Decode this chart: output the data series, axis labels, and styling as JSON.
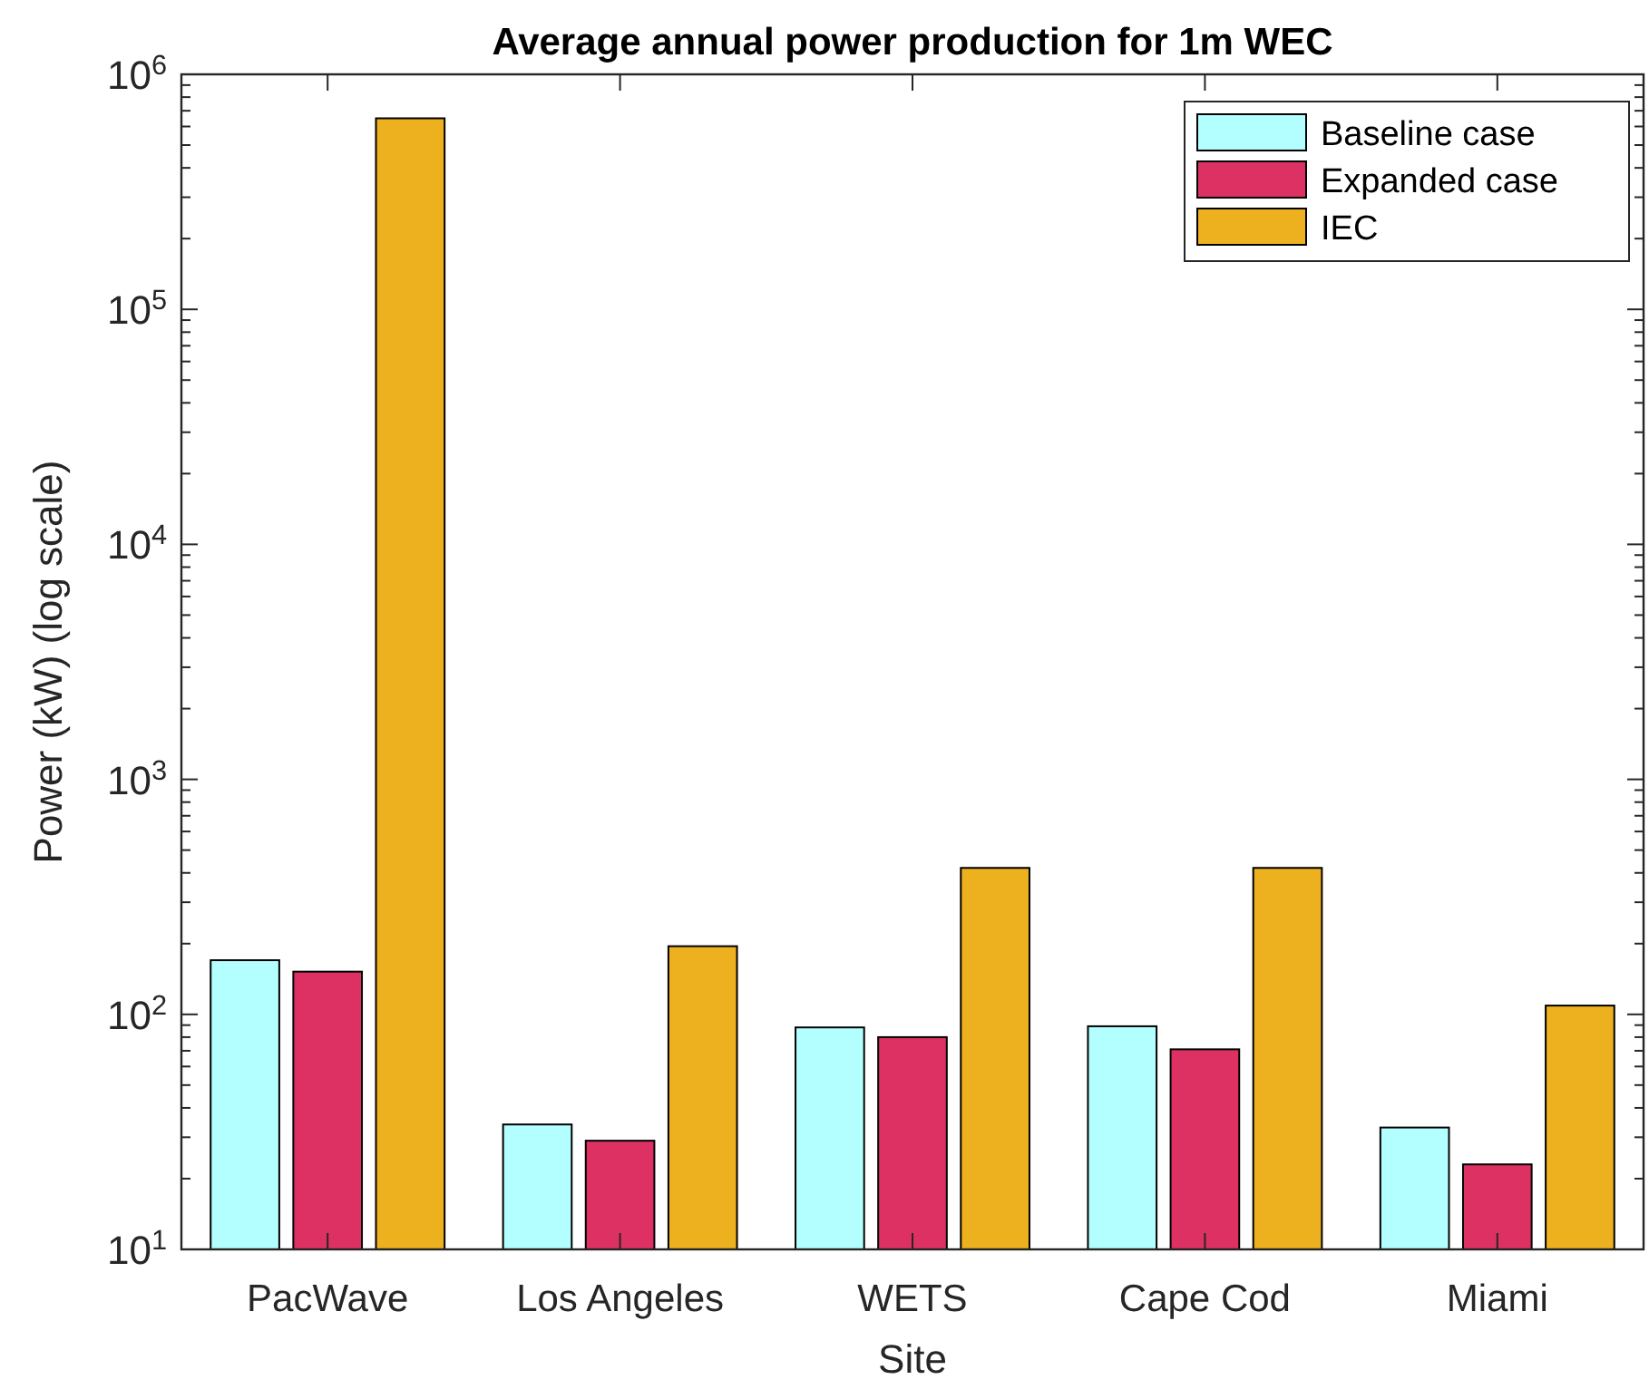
{
  "chart_data": {
    "type": "bar",
    "title": "Average annual power production for 1m WEC",
    "xlabel": "Site",
    "ylabel": "Power (kW) (log scale)",
    "categories": [
      "PacWave",
      "Los Angeles",
      "WETS",
      "Cape Cod",
      "Miami"
    ],
    "series": [
      {
        "name": "Baseline case",
        "color": "#b3ffff",
        "values": [
          170,
          34,
          88,
          89,
          33
        ]
      },
      {
        "name": "Expanded case",
        "color": "#de3163",
        "values": [
          152,
          29,
          80,
          71,
          23
        ]
      },
      {
        "name": "IEC",
        "color": "#edb120",
        "values": [
          650000,
          195,
          420,
          420,
          109
        ]
      }
    ],
    "log": "y",
    "ylim": [
      10,
      1000000
    ],
    "yticks": [
      {
        "value": 10,
        "label": "10$^{1}$"
      },
      {
        "value": 20,
        "label": null
      },
      {
        "value": 30,
        "label": null
      },
      {
        "value": 40,
        "label": null
      },
      {
        "value": 50,
        "label": null
      },
      {
        "value": 60,
        "label": null
      },
      {
        "value": 70,
        "label": null
      },
      {
        "value": 80,
        "label": null
      },
      {
        "value": 90,
        "label": null
      },
      {
        "value": 100,
        "label": "10$^{2}$"
      },
      {
        "value": 200,
        "label": null
      },
      {
        "value": 300,
        "label": null
      },
      {
        "value": 400,
        "label": null
      },
      {
        "value": 500,
        "label": null
      },
      {
        "value": 600,
        "label": null
      },
      {
        "value": 700,
        "label": null
      },
      {
        "value": 800,
        "label": null
      },
      {
        "value": 900,
        "label": null
      },
      {
        "value": 1000,
        "label": "10$^{3}$"
      },
      {
        "value": 2000,
        "label": null
      },
      {
        "value": 3000,
        "label": null
      },
      {
        "value": 4000,
        "label": null
      },
      {
        "value": 5000,
        "label": null
      },
      {
        "value": 6000,
        "label": null
      },
      {
        "value": 7000,
        "label": null
      },
      {
        "value": 8000,
        "label": null
      },
      {
        "value": 9000,
        "label": null
      },
      {
        "value": 10000,
        "label": "10$^{4}$"
      },
      {
        "value": 20000,
        "label": null
      },
      {
        "value": 30000,
        "label": null
      },
      {
        "value": 40000,
        "label": null
      },
      {
        "value": 50000,
        "label": null
      },
      {
        "value": 60000,
        "label": null
      },
      {
        "value": 70000,
        "label": null
      },
      {
        "value": 80000,
        "label": null
      },
      {
        "value": 90000,
        "label": null
      },
      {
        "value": 100000,
        "label": "10$^{5}$"
      },
      {
        "value": 200000,
        "label": null
      },
      {
        "value": 300000,
        "label": null
      },
      {
        "value": 400000,
        "label": null
      },
      {
        "value": 500000,
        "label": null
      },
      {
        "value": 600000,
        "label": null
      },
      {
        "value": 700000,
        "label": null
      },
      {
        "value": 800000,
        "label": null
      },
      {
        "value": 900000,
        "label": null
      },
      {
        "value": 1000000,
        "label": "10$^{6}$"
      }
    ],
    "legend": "top right"
  }
}
